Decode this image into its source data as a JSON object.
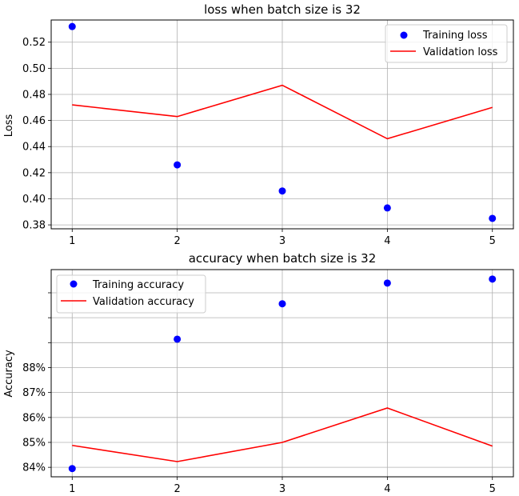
{
  "chart_data": [
    {
      "type": "line",
      "title": "loss when batch size is 32",
      "xlabel": "",
      "ylabel": "Loss",
      "x": [
        1,
        2,
        3,
        4,
        5
      ],
      "xlim": [
        0.8,
        5.2
      ],
      "ylim": [
        0.377,
        0.537
      ],
      "yticks": [
        0.38,
        0.4,
        0.42,
        0.44,
        0.46,
        0.48,
        0.5,
        0.52
      ],
      "ytick_labels": [
        "0.38",
        "0.40",
        "0.42",
        "0.44",
        "0.46",
        "0.48",
        "0.50",
        "0.52"
      ],
      "xtick_labels": [
        "1",
        "2",
        "3",
        "4",
        "5"
      ],
      "grid": true,
      "legend_position": "top-right",
      "series": [
        {
          "name": "Training loss",
          "style": "points",
          "color": "#0000ff",
          "values": [
            0.532,
            0.426,
            0.406,
            0.393,
            0.385
          ]
        },
        {
          "name": "Validation loss",
          "style": "line",
          "color": "#ff0000",
          "values": [
            0.472,
            0.463,
            0.487,
            0.446,
            0.47
          ]
        }
      ]
    },
    {
      "type": "line",
      "title": "accuracy when batch size is 32",
      "xlabel": "",
      "ylabel": "Accuracy",
      "x": [
        1,
        2,
        3,
        4,
        5
      ],
      "xlim": [
        0.8,
        5.2
      ],
      "ylim": [
        83.62,
        91.93
      ],
      "yticks": [
        84,
        85,
        86,
        87,
        88,
        89,
        90,
        91
      ],
      "ytick_labels": [
        "84%",
        "85%",
        "86%",
        "87%",
        "88%",
        "",
        "",
        ""
      ],
      "xtick_labels": [
        "1",
        "2",
        "3",
        "4",
        "5"
      ],
      "grid": true,
      "legend_position": "top-left",
      "series": [
        {
          "name": "Training accuracy",
          "style": "points",
          "color": "#0000ff",
          "values": [
            83.95,
            89.14,
            90.56,
            91.39,
            91.55
          ]
        },
        {
          "name": "Validation accuracy",
          "style": "line",
          "color": "#ff0000",
          "values": [
            84.88,
            84.23,
            85.0,
            86.38,
            84.85
          ]
        }
      ]
    }
  ]
}
